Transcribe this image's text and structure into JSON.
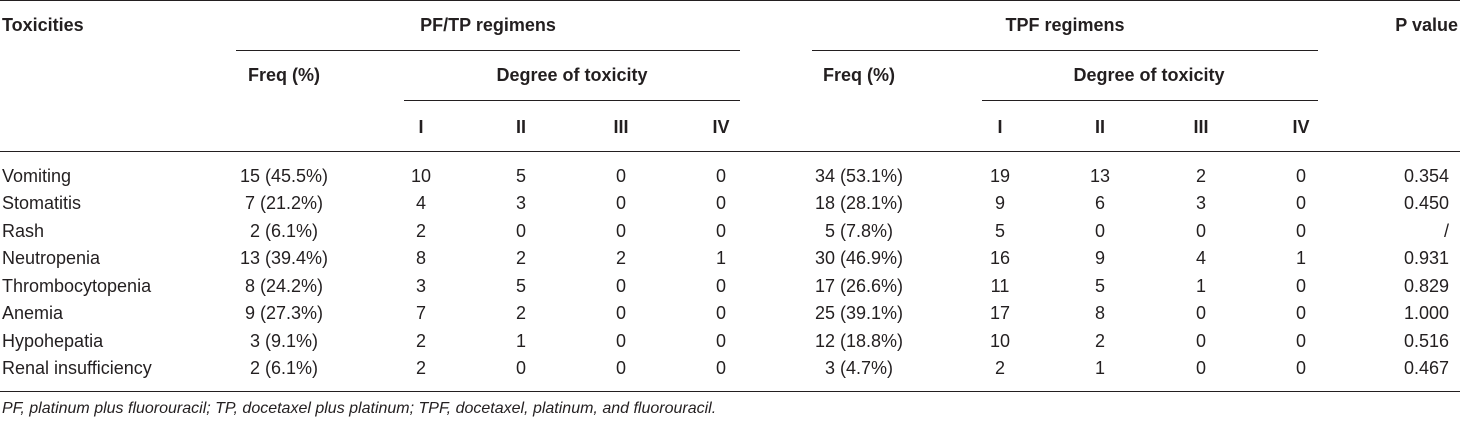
{
  "headers": {
    "toxicities": "Toxicities",
    "pf_tp": "PF/TP regimens",
    "tpf": "TPF regimens",
    "p_value": "P value",
    "freq": "Freq (%)",
    "degree": "Degree of toxicity",
    "grades": [
      "I",
      "II",
      "III",
      "IV"
    ]
  },
  "rows": [
    {
      "name": "Vomiting",
      "pf_freq": "15 (45.5%)",
      "pf": [
        "10",
        "5",
        "0",
        "0"
      ],
      "tpf_freq": "34 (53.1%)",
      "tpf": [
        "19",
        "13",
        "2",
        "0"
      ],
      "p": "0.354"
    },
    {
      "name": "Stomatitis",
      "pf_freq": "7 (21.2%)",
      "pf": [
        "4",
        "3",
        "0",
        "0"
      ],
      "tpf_freq": "18 (28.1%)",
      "tpf": [
        "9",
        "6",
        "3",
        "0"
      ],
      "p": "0.450"
    },
    {
      "name": "Rash",
      "pf_freq": "2 (6.1%)",
      "pf": [
        "2",
        "0",
        "0",
        "0"
      ],
      "tpf_freq": "5 (7.8%)",
      "tpf": [
        "5",
        "0",
        "0",
        "0"
      ],
      "p": "/"
    },
    {
      "name": "Neutropenia",
      "pf_freq": "13 (39.4%)",
      "pf": [
        "8",
        "2",
        "2",
        "1"
      ],
      "tpf_freq": "30 (46.9%)",
      "tpf": [
        "16",
        "9",
        "4",
        "1"
      ],
      "p": "0.931"
    },
    {
      "name": "Thrombocytopenia",
      "pf_freq": "8 (24.2%)",
      "pf": [
        "3",
        "5",
        "0",
        "0"
      ],
      "tpf_freq": "17 (26.6%)",
      "tpf": [
        "11",
        "5",
        "1",
        "0"
      ],
      "p": "0.829"
    },
    {
      "name": "Anemia",
      "pf_freq": "9 (27.3%)",
      "pf": [
        "7",
        "2",
        "0",
        "0"
      ],
      "tpf_freq": "25 (39.1%)",
      "tpf": [
        "17",
        "8",
        "0",
        "0"
      ],
      "p": "1.000"
    },
    {
      "name": "Hypohepatia",
      "pf_freq": "3 (9.1%)",
      "pf": [
        "2",
        "1",
        "0",
        "0"
      ],
      "tpf_freq": "12 (18.8%)",
      "tpf": [
        "10",
        "2",
        "0",
        "0"
      ],
      "p": "0.516"
    },
    {
      "name": "Renal insufficiency",
      "pf_freq": "2 (6.1%)",
      "pf": [
        "2",
        "0",
        "0",
        "0"
      ],
      "tpf_freq": "3 (4.7%)",
      "tpf": [
        "2",
        "1",
        "0",
        "0"
      ],
      "p": "0.467"
    }
  ],
  "footnote": "PF, platinum plus fluorouracil; TP, docetaxel plus platinum; TPF, docetaxel, platinum, and fluorouracil."
}
